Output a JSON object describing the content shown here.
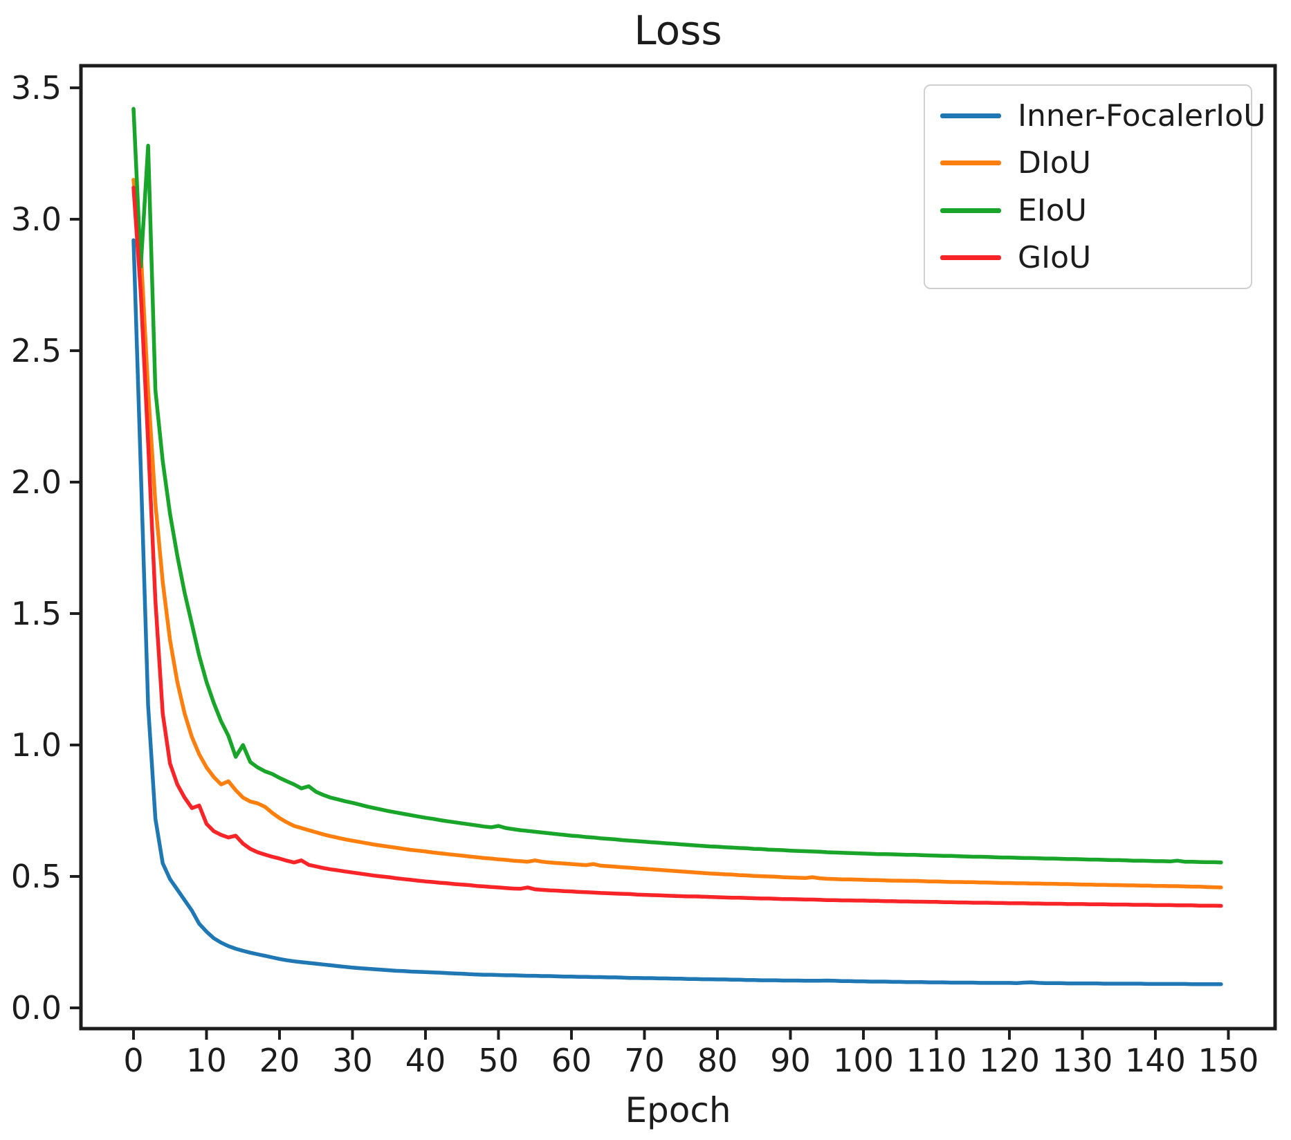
{
  "figure": {
    "title": "Loss",
    "xlabel": "Epoch"
  },
  "colors": {
    "text": "#1c1c1c",
    "spine": "#1d1d1d",
    "legend_border": "#cfcfcf",
    "background": "#ffffff",
    "inner_focaleriou": "#1f77b4",
    "diou": "#ff7f0e",
    "eiou": "#18a52a",
    "giou": "#f82428"
  },
  "chart_data": {
    "type": "line",
    "title": "Loss",
    "xlabel": "Epoch",
    "ylabel": "",
    "grid": false,
    "legend_position": "upper right",
    "xlim": [
      -7.2,
      156.4
    ],
    "ylim": [
      -0.079,
      3.584
    ],
    "x_ticks": [
      0,
      10,
      20,
      30,
      40,
      50,
      60,
      70,
      80,
      90,
      100,
      110,
      120,
      130,
      140,
      150
    ],
    "y_ticks": [
      "0.0",
      "0.5",
      "1.0",
      "1.5",
      "2.0",
      "2.5",
      "3.0",
      "3.5"
    ],
    "x_start": 0,
    "x_step": 1,
    "series": [
      {
        "name": "Inner-FocalerIoU",
        "color": "#1f77b4",
        "values": [
          2.92,
          2.05,
          1.15,
          0.72,
          0.55,
          0.49,
          0.45,
          0.41,
          0.37,
          0.32,
          0.29,
          0.265,
          0.248,
          0.235,
          0.225,
          0.217,
          0.21,
          0.204,
          0.198,
          0.192,
          0.186,
          0.181,
          0.177,
          0.174,
          0.171,
          0.168,
          0.165,
          0.162,
          0.159,
          0.156,
          0.153,
          0.151,
          0.149,
          0.147,
          0.145,
          0.143,
          0.141,
          0.14,
          0.138,
          0.137,
          0.136,
          0.135,
          0.134,
          0.132,
          0.131,
          0.13,
          0.128,
          0.127,
          0.126,
          0.126,
          0.125,
          0.124,
          0.124,
          0.123,
          0.122,
          0.122,
          0.121,
          0.121,
          0.12,
          0.119,
          0.119,
          0.118,
          0.118,
          0.117,
          0.117,
          0.116,
          0.116,
          0.115,
          0.114,
          0.114,
          0.113,
          0.113,
          0.112,
          0.112,
          0.111,
          0.111,
          0.11,
          0.11,
          0.109,
          0.109,
          0.108,
          0.108,
          0.107,
          0.107,
          0.106,
          0.106,
          0.105,
          0.105,
          0.105,
          0.104,
          0.104,
          0.104,
          0.103,
          0.103,
          0.103,
          0.104,
          0.103,
          0.102,
          0.102,
          0.101,
          0.101,
          0.1,
          0.1,
          0.1,
          0.099,
          0.099,
          0.098,
          0.098,
          0.098,
          0.097,
          0.097,
          0.097,
          0.096,
          0.096,
          0.096,
          0.096,
          0.095,
          0.095,
          0.095,
          0.095,
          0.095,
          0.094,
          0.096,
          0.097,
          0.095,
          0.094,
          0.094,
          0.094,
          0.093,
          0.093,
          0.093,
          0.093,
          0.093,
          0.092,
          0.092,
          0.092,
          0.092,
          0.092,
          0.092,
          0.091,
          0.091,
          0.091,
          0.091,
          0.091,
          0.091,
          0.09,
          0.09,
          0.09,
          0.09,
          0.09
        ]
      },
      {
        "name": "DIoU",
        "color": "#ff7f0e",
        "values": [
          3.15,
          2.88,
          2.35,
          1.92,
          1.62,
          1.4,
          1.24,
          1.12,
          1.03,
          0.965,
          0.915,
          0.878,
          0.85,
          0.862,
          0.828,
          0.8,
          0.785,
          0.778,
          0.765,
          0.742,
          0.722,
          0.706,
          0.692,
          0.684,
          0.676,
          0.668,
          0.66,
          0.653,
          0.647,
          0.641,
          0.636,
          0.631,
          0.626,
          0.621,
          0.617,
          0.613,
          0.609,
          0.605,
          0.601,
          0.598,
          0.595,
          0.591,
          0.588,
          0.585,
          0.582,
          0.579,
          0.576,
          0.573,
          0.57,
          0.568,
          0.565,
          0.563,
          0.56,
          0.558,
          0.556,
          0.561,
          0.556,
          0.553,
          0.551,
          0.549,
          0.547,
          0.545,
          0.543,
          0.547,
          0.541,
          0.539,
          0.537,
          0.535,
          0.533,
          0.531,
          0.529,
          0.527,
          0.525,
          0.523,
          0.521,
          0.519,
          0.517,
          0.515,
          0.513,
          0.511,
          0.51,
          0.508,
          0.507,
          0.505,
          0.504,
          0.502,
          0.501,
          0.5,
          0.499,
          0.497,
          0.496,
          0.495,
          0.494,
          0.497,
          0.493,
          0.491,
          0.49,
          0.489,
          0.489,
          0.488,
          0.487,
          0.486,
          0.486,
          0.485,
          0.484,
          0.484,
          0.483,
          0.483,
          0.482,
          0.481,
          0.481,
          0.48,
          0.479,
          0.479,
          0.478,
          0.478,
          0.477,
          0.477,
          0.476,
          0.475,
          0.475,
          0.474,
          0.474,
          0.473,
          0.473,
          0.472,
          0.472,
          0.471,
          0.471,
          0.47,
          0.469,
          0.469,
          0.468,
          0.468,
          0.467,
          0.467,
          0.466,
          0.466,
          0.465,
          0.465,
          0.464,
          0.464,
          0.463,
          0.463,
          0.462,
          0.461,
          0.461,
          0.46,
          0.459,
          0.458
        ]
      },
      {
        "name": "EIoU",
        "color": "#18a52a",
        "values": [
          3.42,
          2.82,
          3.28,
          2.35,
          2.08,
          1.88,
          1.72,
          1.58,
          1.46,
          1.34,
          1.24,
          1.16,
          1.09,
          1.035,
          0.955,
          1.0,
          0.935,
          0.915,
          0.9,
          0.89,
          0.875,
          0.862,
          0.85,
          0.835,
          0.843,
          0.822,
          0.81,
          0.8,
          0.793,
          0.786,
          0.78,
          0.773,
          0.766,
          0.76,
          0.754,
          0.748,
          0.743,
          0.738,
          0.733,
          0.728,
          0.723,
          0.719,
          0.714,
          0.71,
          0.706,
          0.702,
          0.698,
          0.694,
          0.69,
          0.687,
          0.692,
          0.684,
          0.68,
          0.676,
          0.673,
          0.67,
          0.667,
          0.664,
          0.661,
          0.658,
          0.655,
          0.653,
          0.65,
          0.648,
          0.645,
          0.643,
          0.641,
          0.638,
          0.636,
          0.634,
          0.632,
          0.63,
          0.628,
          0.626,
          0.624,
          0.622,
          0.62,
          0.618,
          0.616,
          0.614,
          0.613,
          0.611,
          0.61,
          0.608,
          0.607,
          0.605,
          0.604,
          0.602,
          0.601,
          0.6,
          0.598,
          0.597,
          0.596,
          0.595,
          0.594,
          0.592,
          0.591,
          0.59,
          0.589,
          0.588,
          0.587,
          0.586,
          0.585,
          0.585,
          0.584,
          0.583,
          0.582,
          0.582,
          0.581,
          0.58,
          0.579,
          0.578,
          0.578,
          0.577,
          0.576,
          0.575,
          0.575,
          0.574,
          0.573,
          0.572,
          0.572,
          0.571,
          0.57,
          0.57,
          0.569,
          0.568,
          0.568,
          0.567,
          0.566,
          0.566,
          0.565,
          0.564,
          0.564,
          0.563,
          0.562,
          0.562,
          0.561,
          0.56,
          0.56,
          0.559,
          0.558,
          0.558,
          0.557,
          0.56,
          0.556,
          0.556,
          0.555,
          0.554,
          0.554,
          0.553
        ]
      },
      {
        "name": "GIoU",
        "color": "#f82428",
        "values": [
          3.12,
          2.72,
          2.15,
          1.55,
          1.12,
          0.93,
          0.85,
          0.8,
          0.76,
          0.77,
          0.7,
          0.672,
          0.658,
          0.648,
          0.655,
          0.625,
          0.605,
          0.592,
          0.583,
          0.575,
          0.568,
          0.56,
          0.553,
          0.561,
          0.544,
          0.538,
          0.532,
          0.527,
          0.523,
          0.519,
          0.515,
          0.511,
          0.507,
          0.503,
          0.5,
          0.497,
          0.493,
          0.49,
          0.487,
          0.484,
          0.481,
          0.479,
          0.476,
          0.474,
          0.471,
          0.469,
          0.467,
          0.464,
          0.462,
          0.46,
          0.458,
          0.456,
          0.454,
          0.453,
          0.458,
          0.451,
          0.449,
          0.447,
          0.446,
          0.444,
          0.443,
          0.441,
          0.44,
          0.439,
          0.437,
          0.436,
          0.435,
          0.434,
          0.433,
          0.431,
          0.43,
          0.429,
          0.428,
          0.427,
          0.426,
          0.425,
          0.424,
          0.424,
          0.423,
          0.422,
          0.421,
          0.42,
          0.419,
          0.419,
          0.418,
          0.417,
          0.416,
          0.416,
          0.415,
          0.414,
          0.414,
          0.413,
          0.412,
          0.412,
          0.411,
          0.41,
          0.41,
          0.409,
          0.409,
          0.408,
          0.408,
          0.407,
          0.407,
          0.406,
          0.406,
          0.405,
          0.405,
          0.404,
          0.404,
          0.403,
          0.403,
          0.402,
          0.402,
          0.401,
          0.401,
          0.4,
          0.4,
          0.4,
          0.399,
          0.399,
          0.398,
          0.398,
          0.398,
          0.397,
          0.397,
          0.396,
          0.396,
          0.396,
          0.395,
          0.395,
          0.395,
          0.394,
          0.394,
          0.394,
          0.393,
          0.393,
          0.393,
          0.392,
          0.392,
          0.392,
          0.391,
          0.391,
          0.391,
          0.39,
          0.39,
          0.39,
          0.389,
          0.389,
          0.389,
          0.388
        ]
      }
    ]
  }
}
